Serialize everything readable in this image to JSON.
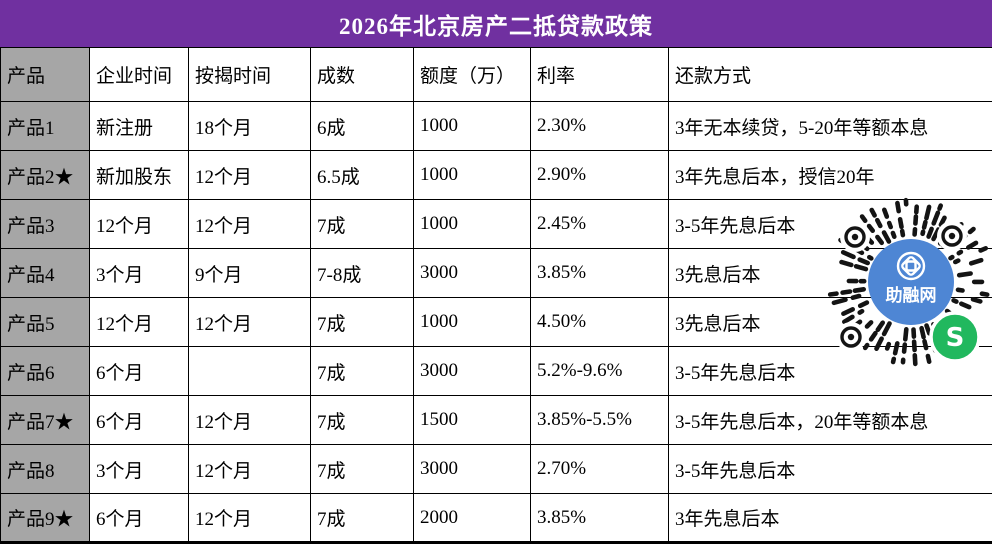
{
  "title": "2026年北京房产二抵贷款政策",
  "colors": {
    "title_bg": "#7030A0",
    "product_col_bg": "#A6A6A6",
    "highlight_red": "#FF0000",
    "qr_center_blue": "#4E86D4",
    "qr_badge_green": "#21B85E",
    "grid_border": "#000000"
  },
  "table": {
    "headers": {
      "product": "产品",
      "enterprise_time": "企业时间",
      "mortgage_time": "按揭时间",
      "ratio": "成数",
      "quota": "额度（万）",
      "rate": "利率",
      "repayment": "还款方式"
    },
    "rows": [
      {
        "product": "产品1",
        "enterprise": "新注册",
        "mortgage": "18个月",
        "ratio": "6成",
        "quota": "1000",
        "rate": "2.30%",
        "repayment": "3年无本续贷，5-20年等额本息"
      },
      {
        "product": "产品2★",
        "enterprise": "新加股东",
        "mortgage": "12个月",
        "ratio": "6.5成",
        "quota": "1000",
        "rate": "2.90%",
        "repayment": "3年先息后本，授信20年"
      },
      {
        "product": "产品3",
        "enterprise": "12个月",
        "mortgage": "12个月",
        "ratio": "7成",
        "quota": "1000",
        "rate": "2.45%",
        "repayment": "3-5年先息后本"
      },
      {
        "product": "产品4",
        "enterprise": "3个月",
        "mortgage": "9个月",
        "ratio": "7-8成",
        "quota": "3000",
        "rate": "3.85%",
        "repayment": "3先息后本"
      },
      {
        "product": "产品5",
        "enterprise": "12个月",
        "mortgage": "12个月",
        "ratio": "7成",
        "quota": "1000",
        "rate": "4.50%",
        "repayment": "3先息后本"
      },
      {
        "product": "产品6",
        "enterprise": "6个月",
        "mortgage": "",
        "ratio": "7成",
        "quota": "3000",
        "rate": "5.2%-9.6%",
        "repayment": "3-5年先息后本"
      },
      {
        "product": "产品7★",
        "enterprise": "6个月",
        "mortgage": "12个月",
        "ratio": "7成",
        "quota": "1500",
        "rate": "3.85%-5.5%",
        "repayment": "3-5年先息后本，20年等额本息"
      },
      {
        "product": "产品8",
        "enterprise": "3个月",
        "mortgage": "12个月",
        "ratio": "7成",
        "quota": "3000",
        "rate": "2.70%",
        "repayment": "3-5年先息后本"
      },
      {
        "product": "产品9★",
        "enterprise": "6个月",
        "mortgage": "12个月",
        "ratio": "7成",
        "quota": "2000",
        "rate": "3.85%",
        "repayment": "3年先息后本"
      }
    ]
  },
  "qr": {
    "center_label": "助融网",
    "badge_letter": "S"
  }
}
